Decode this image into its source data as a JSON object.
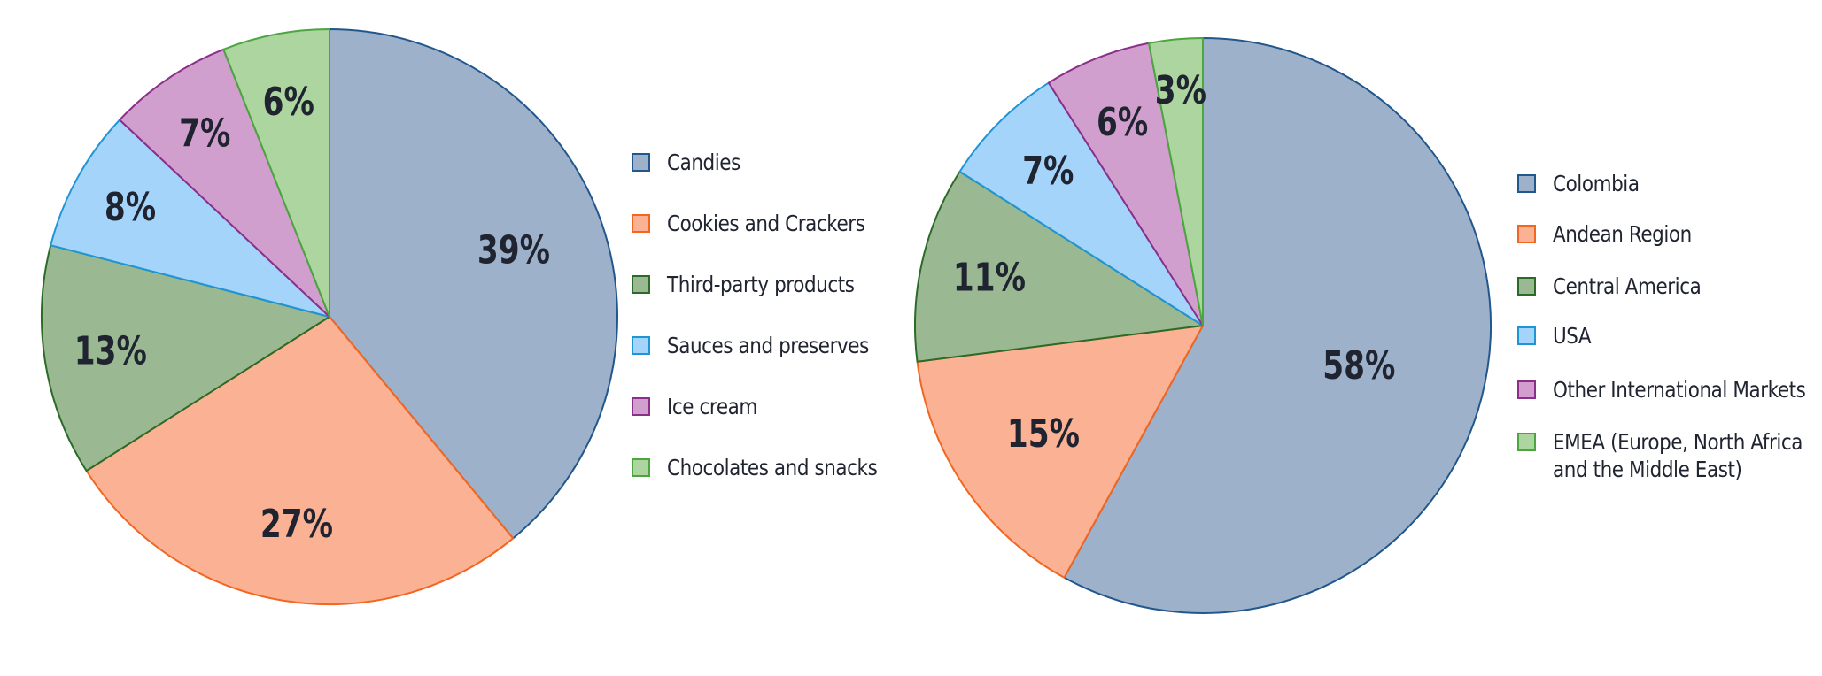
{
  "chart_data": [
    {
      "type": "pie",
      "title": "",
      "categories": [
        "Candies",
        "Cookies and Crackers",
        "Third-party products",
        "Sauces and preserves",
        "Ice cream",
        "Chocolates and snacks"
      ],
      "values": [
        39,
        27,
        13,
        8,
        7,
        6
      ],
      "labels": [
        "39%",
        "27%",
        "13%",
        "8%",
        "7%",
        "6%"
      ],
      "colors": [
        "#9eb1ca",
        "#fbb193",
        "#9ab993",
        "#a5d4fa",
        "#d19fcd",
        "#acd59f"
      ],
      "edge_colors": [
        "#21578c",
        "#f2661f",
        "#2c6a27",
        "#1f95d5",
        "#8c2f8b",
        "#4aa63d"
      ],
      "legend_position": "right"
    },
    {
      "type": "pie",
      "title": "",
      "categories": [
        "Colombia",
        "Andean Region",
        "Central America",
        "USA",
        "Other International Markets",
        "EMEA (Europe, North Africa and the Middle East)"
      ],
      "legend_lines": [
        [
          "Colombia"
        ],
        [
          "Andean Region"
        ],
        [
          "Central America"
        ],
        [
          "USA"
        ],
        [
          "Other International Markets"
        ],
        [
          "EMEA (Europe, North Africa",
          "and the Middle East)"
        ]
      ],
      "values": [
        58,
        15,
        11,
        7,
        6,
        3
      ],
      "labels": [
        "58%",
        "15%",
        "11%",
        "7%",
        "6%",
        "3%"
      ],
      "colors": [
        "#9eb1ca",
        "#fbb193",
        "#9ab993",
        "#a5d4fa",
        "#d19fcd",
        "#acd59f"
      ],
      "edge_colors": [
        "#21578c",
        "#f2661f",
        "#2c6a27",
        "#1f95d5",
        "#8c2f8b",
        "#4aa63d"
      ],
      "legend_position": "right"
    }
  ]
}
